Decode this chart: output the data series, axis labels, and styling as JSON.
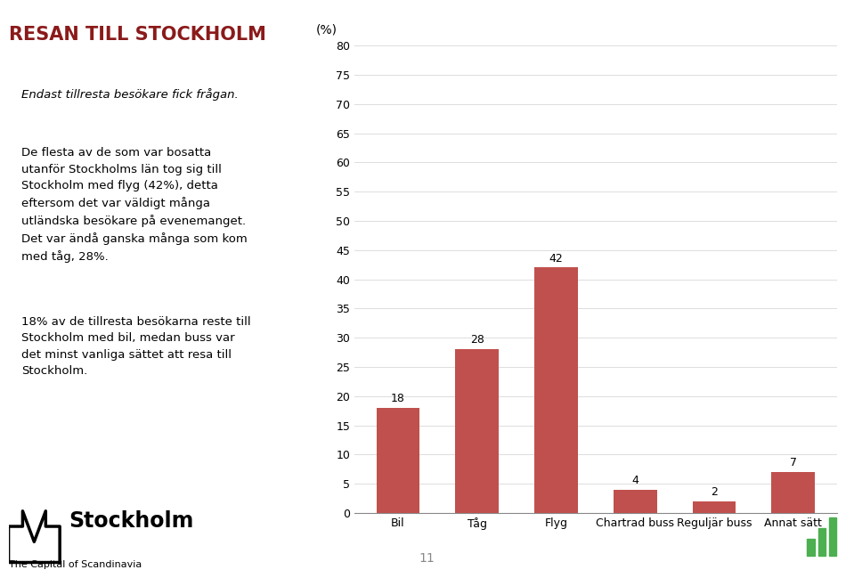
{
  "title": "RESAN TILL STOCKHOLM",
  "subtitle": "Endast tillresta besökare fick frågan.",
  "body_text_1": "De flesta av de som var bosatta\nutanför Stockholms län tog sig till\nStockholm med flyg (42%), detta\neftersom det var väldigt många\nutländska besökare på evenemanget.\nDet var ändå ganska många som kom\nmed tåg, 28%.",
  "body_text_2": "18% av de tillresta besökarna reste till\nStockholm med bil, medan buss var\ndet minst vanliga sättet att resa till\nStockholm.",
  "ylabel": "(%)",
  "categories": [
    "Bil",
    "Tåg",
    "Flyg",
    "Chartrad buss",
    "Reguljär buss",
    "Annat sätt"
  ],
  "values": [
    18,
    28,
    42,
    4,
    2,
    7
  ],
  "bar_color": "#c0504d",
  "ylim": [
    0,
    80
  ],
  "yticks": [
    0,
    5,
    10,
    15,
    20,
    25,
    30,
    35,
    40,
    45,
    50,
    55,
    60,
    65,
    70,
    75,
    80
  ],
  "page_number": "11",
  "title_color": "#8b1a1a",
  "title_fontsize": 15,
  "subtitle_fontsize": 9.5,
  "body_fontsize": 9.5,
  "value_label_fontsize": 9,
  "axis_fontsize": 9,
  "background_color": "#ffffff",
  "border_color": "#555555",
  "stockholm_logo_fontsize": 18,
  "caption_fontsize": 9
}
